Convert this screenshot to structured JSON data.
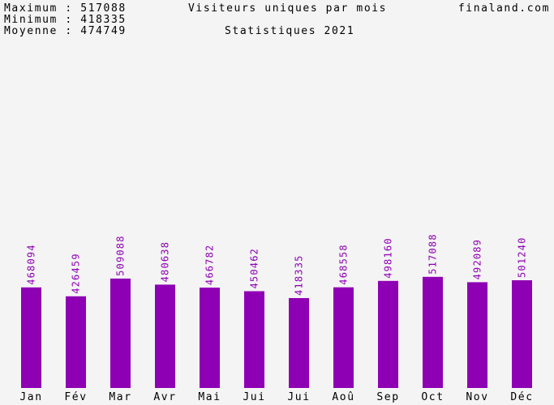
{
  "header": {
    "max_line": "Maximum : 517088",
    "min_line": "Minimum : 418335",
    "avg_line": "Moyenne : 474749",
    "site": "finaland.com"
  },
  "colors": {
    "background": "#f4f4f4",
    "bar": "#8e00b3",
    "value_label": "#8e00b3",
    "text": "#000000"
  },
  "chart_data": {
    "type": "bar",
    "title": "Visiteurs uniques par mois",
    "subtitle": "Statistiques 2021",
    "xlabel": "",
    "ylabel": "",
    "grid": false,
    "legend": "none",
    "ylim": [
      0,
      1300000
    ],
    "categories": [
      "Jan",
      "Fév",
      "Mar",
      "Avr",
      "Mai",
      "Jui",
      "Jui",
      "Aoû",
      "Sep",
      "Oct",
      "Nov",
      "Déc"
    ],
    "values": [
      468094,
      426459,
      509088,
      480638,
      466782,
      450462,
      418335,
      468558,
      498160,
      517088,
      492089,
      501240
    ],
    "value_labels": [
      "468094",
      "426459",
      "509088",
      "480638",
      "466782",
      "450462",
      "418335",
      "468558",
      "498160",
      "517088",
      "492089",
      "501240"
    ]
  }
}
